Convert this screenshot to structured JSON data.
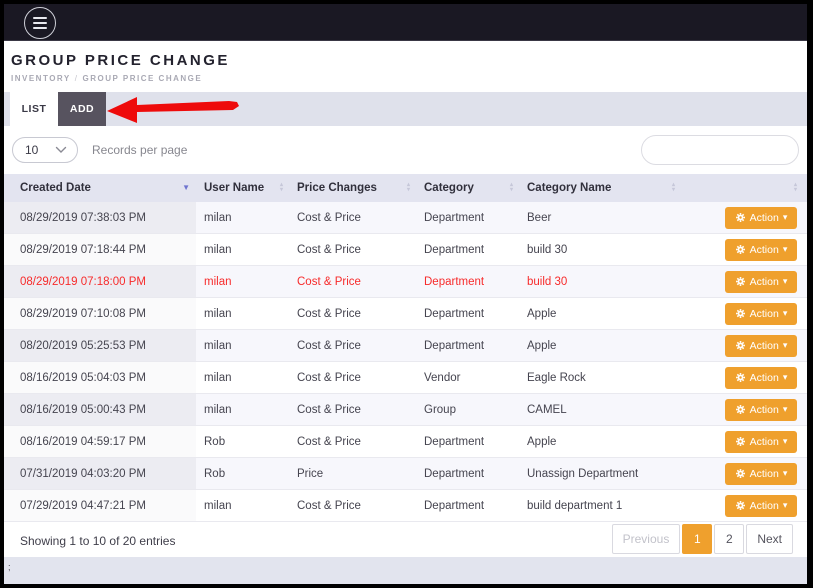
{
  "topbar": {
    "menu_icon": "hamburger-icon"
  },
  "header": {
    "title": "GROUP PRICE CHANGE",
    "breadcrumb": {
      "parent": "INVENTORY",
      "separator": "/",
      "current": "GROUP PRICE CHANGE"
    }
  },
  "tabs": [
    {
      "label": "LIST",
      "active": true
    },
    {
      "label": "ADD",
      "active": false
    }
  ],
  "annotation": {
    "type": "red-arrow",
    "points_at": "ADD tab"
  },
  "controls": {
    "records_per_page_value": "10",
    "records_per_page_label": "Records per page",
    "search_placeholder": ""
  },
  "table": {
    "columns": [
      {
        "label": "Created Date",
        "sort": "desc"
      },
      {
        "label": "User Name",
        "sort": "none"
      },
      {
        "label": "Price Changes",
        "sort": "none"
      },
      {
        "label": "Category",
        "sort": "none"
      },
      {
        "label": "Category Name",
        "sort": "none"
      },
      {
        "label": "",
        "sort": "none"
      }
    ],
    "action_label": "Action",
    "rows": [
      {
        "created": "08/29/2019 07:38:03 PM",
        "user": "milan",
        "price_changes": "Cost & Price",
        "category": "Department",
        "category_name": "Beer",
        "highlight": false
      },
      {
        "created": "08/29/2019 07:18:44 PM",
        "user": "milan",
        "price_changes": "Cost & Price",
        "category": "Department",
        "category_name": "build 30",
        "highlight": false
      },
      {
        "created": "08/29/2019 07:18:00 PM",
        "user": "milan",
        "price_changes": "Cost & Price",
        "category": "Department",
        "category_name": "build 30",
        "highlight": true
      },
      {
        "created": "08/29/2019 07:10:08 PM",
        "user": "milan",
        "price_changes": "Cost & Price",
        "category": "Department",
        "category_name": "Apple",
        "highlight": false
      },
      {
        "created": "08/20/2019 05:25:53 PM",
        "user": "milan",
        "price_changes": "Cost & Price",
        "category": "Department",
        "category_name": "Apple",
        "highlight": false
      },
      {
        "created": "08/16/2019 05:04:03 PM",
        "user": "milan",
        "price_changes": "Cost & Price",
        "category": "Vendor",
        "category_name": "Eagle Rock",
        "highlight": false
      },
      {
        "created": "08/16/2019 05:00:43 PM",
        "user": "milan",
        "price_changes": "Cost & Price",
        "category": "Group",
        "category_name": "CAMEL",
        "highlight": false
      },
      {
        "created": "08/16/2019 04:59:17 PM",
        "user": "Rob",
        "price_changes": "Cost & Price",
        "category": "Department",
        "category_name": "Apple",
        "highlight": false
      },
      {
        "created": "07/31/2019 04:03:20 PM",
        "user": "Rob",
        "price_changes": "Price",
        "category": "Department",
        "category_name": "Unassign Department",
        "highlight": false
      },
      {
        "created": "07/29/2019 04:47:21 PM",
        "user": "milan",
        "price_changes": "Cost & Price",
        "category": "Department",
        "category_name": "build department 1",
        "highlight": false
      }
    ]
  },
  "footer": {
    "showing_text": "Showing 1 to 10 of 20 entries",
    "pagination": [
      {
        "label": "Previous",
        "state": "disabled"
      },
      {
        "label": "1",
        "state": "active"
      },
      {
        "label": "2",
        "state": "normal"
      },
      {
        "label": "Next",
        "state": "normal"
      }
    ]
  },
  "bottom_bar": {
    "text": ";"
  },
  "icons": {
    "menu": "hamburger-icon",
    "search": "magnifier-icon",
    "action": "gear-icon",
    "action_caret": "caret-down-icon",
    "select": "chevron-down-icon",
    "sort_active": "sort-desc-icon",
    "sort_inactive": "sort-both-icon"
  },
  "colors": {
    "accent_orange": "#efa02d",
    "highlight_red": "#f72b2b",
    "arrow_red": "#ee0b0b",
    "topbar_bg": "#1a1823",
    "tab_dark_bg": "#57535f",
    "table_header_bg": "#e3e4f0",
    "sort_active": "#6f74cf"
  }
}
